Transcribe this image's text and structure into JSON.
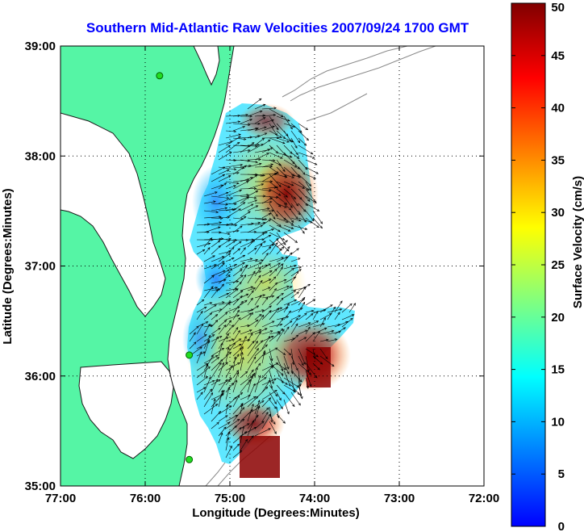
{
  "chart_data": {
    "type": "heatmap",
    "title": "Southern Mid-Atlantic Raw Velocities 2007/09/24 1700 GMT",
    "xlabel": "Longitude (Degrees:Minutes)",
    "ylabel": "Latitude (Degrees:Minutes)",
    "colorbar_label": "Surface Velocity (cm/s)",
    "xlim": [
      -77,
      -72
    ],
    "ylim": [
      35,
      39
    ],
    "x_ticks": [
      {
        "value": -77,
        "label": "77:00"
      },
      {
        "value": -76,
        "label": "76:00"
      },
      {
        "value": -75,
        "label": "75:00"
      },
      {
        "value": -74,
        "label": "74:00"
      },
      {
        "value": -73,
        "label": "73:00"
      },
      {
        "value": -72,
        "label": "72:00"
      }
    ],
    "y_ticks": [
      {
        "value": 35,
        "label": "35:00"
      },
      {
        "value": 36,
        "label": "36:00"
      },
      {
        "value": 37,
        "label": "37:00"
      },
      {
        "value": 38,
        "label": "38:00"
      },
      {
        "value": 39,
        "label": "39:00"
      }
    ],
    "colorbar": {
      "min": 0,
      "max": 50,
      "ticks": [
        {
          "value": 0,
          "label": "0"
        },
        {
          "value": 5,
          "label": "5"
        },
        {
          "value": 10,
          "label": "10"
        },
        {
          "value": 15,
          "label": "15"
        },
        {
          "value": 20,
          "label": "20"
        },
        {
          "value": 25,
          "label": "25"
        },
        {
          "value": 30,
          "label": "30"
        },
        {
          "value": 35,
          "label": "35"
        },
        {
          "value": 40,
          "label": "40"
        },
        {
          "value": 45,
          "label": "45"
        },
        {
          "value": 50,
          "label": "50"
        }
      ]
    },
    "grid": true,
    "colors": {
      "land": "#55f5a5",
      "coastline": "#1a1a1a",
      "bathymetry": "#8a8a8a",
      "grid": "#000000",
      "vector": "#000000",
      "station": "#22dd22"
    },
    "velocity_field_samples": [
      {
        "lon": -74.5,
        "lat": 37.5,
        "speed": 48
      },
      {
        "lon": -74.3,
        "lat": 37.7,
        "speed": 45
      },
      {
        "lon": -74.6,
        "lat": 38.1,
        "speed": 35
      },
      {
        "lon": -75.0,
        "lat": 37.8,
        "speed": 25
      },
      {
        "lon": -75.3,
        "lat": 37.7,
        "speed": 18
      },
      {
        "lon": -75.6,
        "lat": 37.6,
        "speed": 12
      },
      {
        "lon": -75.1,
        "lat": 37.3,
        "speed": 22
      },
      {
        "lon": -75.3,
        "lat": 37.0,
        "speed": 13
      },
      {
        "lon": -75.0,
        "lat": 36.9,
        "speed": 6
      },
      {
        "lon": -74.6,
        "lat": 36.9,
        "speed": 28
      },
      {
        "lon": -74.5,
        "lat": 36.5,
        "speed": 27
      },
      {
        "lon": -75.2,
        "lat": 36.4,
        "speed": 24
      },
      {
        "lon": -75.5,
        "lat": 36.2,
        "speed": 14
      },
      {
        "lon": -75.0,
        "lat": 35.9,
        "speed": 30
      },
      {
        "lon": -74.7,
        "lat": 36.0,
        "speed": 20
      },
      {
        "lon": -74.2,
        "lat": 36.1,
        "speed": 45
      },
      {
        "lon": -74.1,
        "lat": 36.3,
        "speed": 50
      },
      {
        "lon": -74.8,
        "lat": 35.5,
        "speed": 42
      },
      {
        "lon": -75.0,
        "lat": 35.7,
        "speed": 35
      },
      {
        "lon": -75.4,
        "lat": 35.7,
        "speed": 22
      }
    ],
    "stations": [
      {
        "lon": -75.83,
        "lat": 38.73
      },
      {
        "lon": -75.48,
        "lat": 36.19
      },
      {
        "lon": -75.48,
        "lat": 35.24
      }
    ]
  }
}
